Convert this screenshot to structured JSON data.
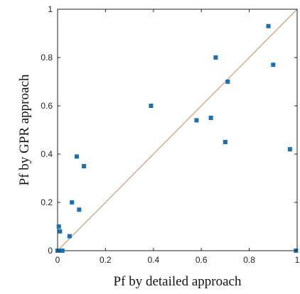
{
  "chart_data": {
    "type": "scatter",
    "title": "",
    "xlabel": "Pf by detailed approach",
    "ylabel": "Pf by GPR approach",
    "xlim": [
      0,
      1
    ],
    "ylim": [
      0,
      1
    ],
    "xticks": [
      0,
      0.2,
      0.4,
      0.6,
      0.8,
      1
    ],
    "yticks": [
      0,
      0.2,
      0.4,
      0.6,
      0.8,
      1
    ],
    "xtick_labels": [
      "0",
      "0.2",
      "0.4",
      "0.6",
      "0.8",
      "1"
    ],
    "ytick_labels": [
      "0",
      "0.2",
      "0.4",
      "0.6",
      "0.8",
      "1"
    ],
    "grid": false,
    "reference_line": {
      "type": "y=x",
      "color": "#d9a07d"
    },
    "marker_color": "#1a6fb5",
    "points": [
      {
        "x": 0.0,
        "y": 0.0
      },
      {
        "x": 0.005,
        "y": 0.1
      },
      {
        "x": 0.01,
        "y": 0.08
      },
      {
        "x": 0.01,
        "y": 0.0
      },
      {
        "x": 0.02,
        "y": 0.0
      },
      {
        "x": 0.05,
        "y": 0.06
      },
      {
        "x": 0.06,
        "y": 0.2
      },
      {
        "x": 0.08,
        "y": 0.39
      },
      {
        "x": 0.09,
        "y": 0.17
      },
      {
        "x": 0.11,
        "y": 0.35
      },
      {
        "x": 0.39,
        "y": 0.6
      },
      {
        "x": 0.58,
        "y": 0.54
      },
      {
        "x": 0.64,
        "y": 0.55
      },
      {
        "x": 0.66,
        "y": 0.8
      },
      {
        "x": 0.7,
        "y": 0.45
      },
      {
        "x": 0.71,
        "y": 0.7
      },
      {
        "x": 0.88,
        "y": 0.93
      },
      {
        "x": 0.9,
        "y": 0.77
      },
      {
        "x": 0.97,
        "y": 0.42
      },
      {
        "x": 0.995,
        "y": 0.0
      }
    ]
  }
}
